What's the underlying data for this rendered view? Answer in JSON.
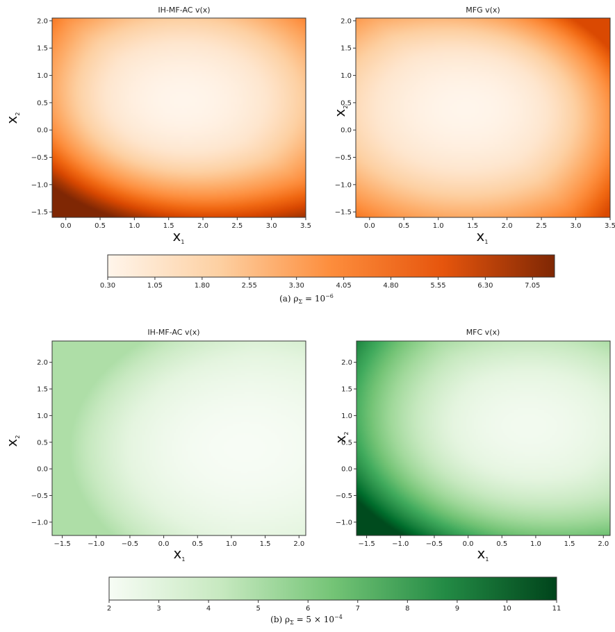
{
  "chart_data": [
    {
      "type": "heatmap",
      "title": "IH-MF-AC v(x)",
      "xlabel": "x",
      "xlabel_sub": "1",
      "ylabel": "x",
      "ylabel_sub": "2",
      "xlim": [
        -0.2,
        3.5
      ],
      "ylim": [
        -1.6,
        2.05
      ],
      "xticks": [
        "0.0",
        "0.5",
        "1.0",
        "1.5",
        "2.0",
        "2.5",
        "3.0",
        "3.5"
      ],
      "yticks": [
        "-1.5",
        "-1.0",
        "-0.5",
        "0.0",
        "0.5",
        "1.0",
        "1.5",
        "2.0"
      ],
      "colormap": "Oranges",
      "field": {
        "center": [
          1.7,
          0.55
        ],
        "base": 0.3,
        "peak_corner": [
          -0.2,
          -1.6
        ],
        "peak_value": 7.4
      }
    },
    {
      "type": "heatmap",
      "title": "MFG v(x)",
      "xlabel": "x",
      "xlabel_sub": "1",
      "ylabel": "x",
      "ylabel_sub": "2",
      "xlim": [
        -0.2,
        3.5
      ],
      "ylim": [
        -1.6,
        2.05
      ],
      "xticks": [
        "0.0",
        "0.5",
        "1.0",
        "1.5",
        "2.0",
        "2.5",
        "3.0",
        "3.5"
      ],
      "yticks": [
        "-1.5",
        "-1.0",
        "-0.5",
        "0.0",
        "0.5",
        "1.0",
        "1.5",
        "2.0"
      ],
      "colormap": "Oranges",
      "field": {
        "center": [
          1.4,
          0.4
        ],
        "base": 0.3,
        "peak_corner": [
          3.5,
          2.05
        ],
        "peak_value": 5.6
      }
    },
    {
      "type": "heatmap",
      "title": "IH-MF-AC v(x)",
      "xlabel": "x",
      "xlabel_sub": "1",
      "ylabel": "x",
      "ylabel_sub": "2",
      "xlim": [
        -1.65,
        2.1
      ],
      "ylim": [
        -1.25,
        2.4
      ],
      "xticks": [
        "-1.5",
        "-1.0",
        "-0.5",
        "0.0",
        "0.5",
        "1.0",
        "1.5",
        "2.0"
      ],
      "yticks": [
        "-1.0",
        "-0.5",
        "0.0",
        "0.5",
        "1.0",
        "1.5",
        "2.0"
      ],
      "colormap": "Greens",
      "field": {
        "center": [
          1.2,
          0.4
        ],
        "base": 2.0,
        "peak_corner": [
          -1.65,
          0.6
        ],
        "peak_value": 5.0
      }
    },
    {
      "type": "heatmap",
      "title": "MFC v(x)",
      "xlabel": "x",
      "xlabel_sub": "1",
      "ylabel": "x",
      "ylabel_sub": "2",
      "xlim": [
        -1.65,
        2.1
      ],
      "ylim": [
        -1.25,
        2.4
      ],
      "xticks": [
        "-1.5",
        "-1.0",
        "-0.5",
        "0.0",
        "0.5",
        "1.0",
        "1.5",
        "2.0"
      ],
      "yticks": [
        "-1.0",
        "-0.5",
        "0.0",
        "0.5",
        "1.0",
        "1.5",
        "2.0"
      ],
      "colormap": "Greens",
      "field": {
        "center": [
          0.9,
          0.8
        ],
        "base": 2.3,
        "peak_corner": [
          -1.65,
          -1.25
        ],
        "peak_value": 10.8
      }
    }
  ],
  "colorbars": [
    {
      "colormap": "Oranges",
      "min": 0.3,
      "max": 7.4,
      "ticks": [
        "0.30",
        "1.05",
        "1.80",
        "2.55",
        "3.30",
        "4.05",
        "4.80",
        "5.55",
        "6.30",
        "7.05"
      ]
    },
    {
      "colormap": "Greens",
      "min": 2,
      "max": 11,
      "ticks": [
        "2",
        "3",
        "4",
        "5",
        "6",
        "7",
        "8",
        "9",
        "10",
        "11"
      ]
    }
  ],
  "captions": {
    "a": {
      "label": "(a) ρ",
      "sub": "Σ",
      "eq": " = 10",
      "sup": "−6"
    },
    "b": {
      "label": "(b) ρ",
      "sub": "Σ",
      "eq": " = 5 × 10",
      "sup": "−4"
    }
  },
  "colors": {
    "oranges_low": "#fff5eb",
    "oranges_mid": "#fd8d3c",
    "oranges_high": "#7f2704",
    "greens_low": "#f7fcf5",
    "greens_mid": "#74c476",
    "greens_high": "#00441b"
  }
}
